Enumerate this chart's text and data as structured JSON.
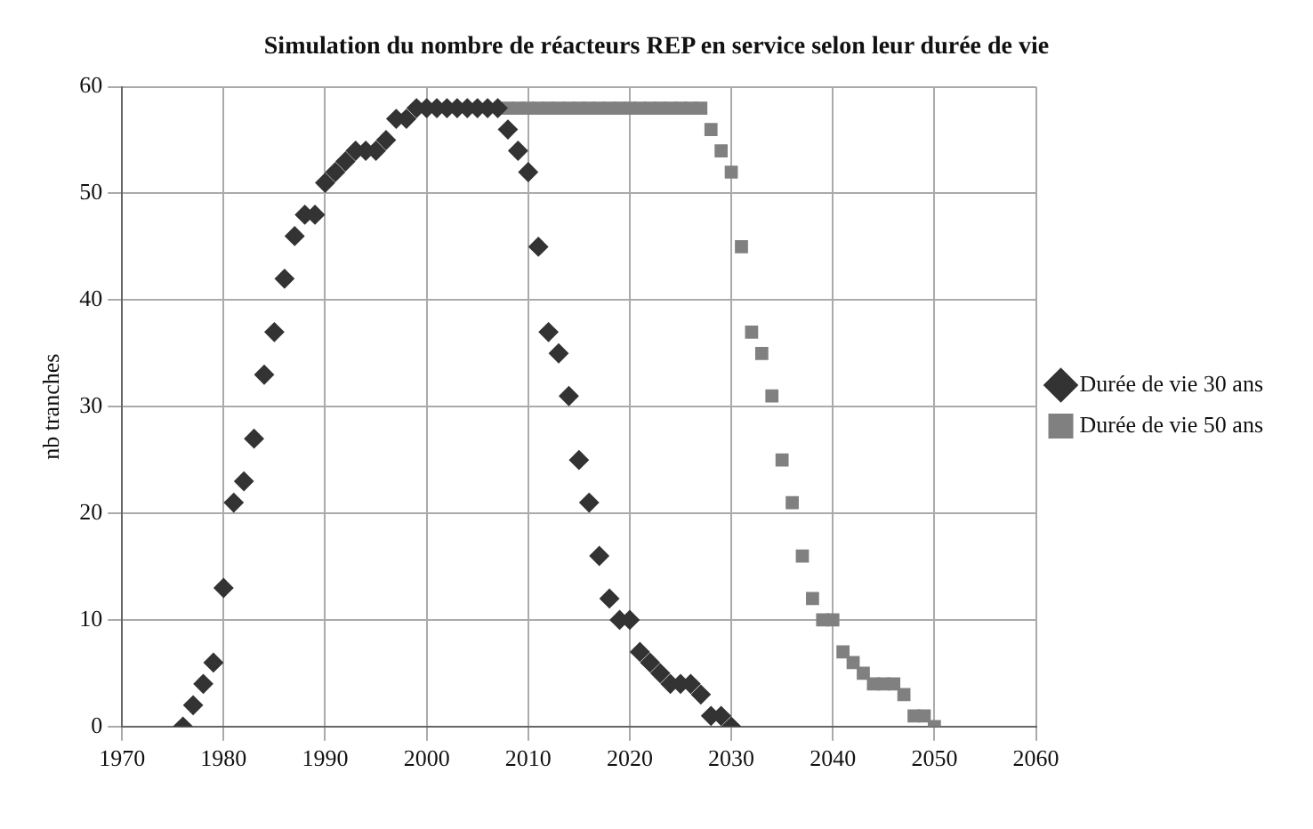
{
  "chart_data": {
    "type": "scatter",
    "title": "Simulation du nombre de réacteurs REP en service selon leur durée de vie",
    "ylabel": "nb tranches",
    "xlim": [
      1970,
      2060
    ],
    "xticks": [
      1970,
      1980,
      1990,
      2000,
      2010,
      2020,
      2030,
      2040,
      2050,
      2060
    ],
    "ylim": [
      0,
      60
    ],
    "yticks": [
      0,
      10,
      20,
      30,
      40,
      50,
      60
    ],
    "grid": true,
    "legend": "right",
    "series": [
      {
        "name": "Durée de vie 30 ans",
        "color": "#333333",
        "marker": "diamond",
        "x": [
          1976,
          1977,
          1978,
          1979,
          1980,
          1981,
          1982,
          1983,
          1984,
          1985,
          1986,
          1987,
          1988,
          1989,
          1990,
          1991,
          1992,
          1993,
          1994,
          1995,
          1996,
          1997,
          1998,
          1999,
          2000,
          2001,
          2002,
          2003,
          2004,
          2005,
          2006,
          2007,
          2008,
          2009,
          2010,
          2011,
          2012,
          2013,
          2014,
          2015,
          2016,
          2017,
          2018,
          2019,
          2020,
          2021,
          2022,
          2023,
          2024,
          2025,
          2026,
          2027,
          2028,
          2029,
          2030
        ],
        "values": [
          0,
          2,
          4,
          6,
          13,
          21,
          23,
          27,
          33,
          37,
          42,
          46,
          48,
          48,
          51,
          52,
          53,
          54,
          54,
          54,
          55,
          57,
          57,
          58,
          58,
          58,
          58,
          58,
          58,
          58,
          58,
          58,
          56,
          54,
          52,
          45,
          37,
          35,
          31,
          25,
          21,
          16,
          12,
          10,
          10,
          7,
          6,
          5,
          4,
          4,
          4,
          3,
          1,
          1,
          0
        ]
      },
      {
        "name": "Durée de vie 50 ans",
        "color": "#808080",
        "marker": "square",
        "x": [
          2008,
          2009,
          2010,
          2011,
          2012,
          2013,
          2014,
          2015,
          2016,
          2017,
          2018,
          2019,
          2020,
          2021,
          2022,
          2023,
          2024,
          2025,
          2026,
          2027,
          2028,
          2029,
          2030,
          2031,
          2032,
          2033,
          2034,
          2035,
          2036,
          2037,
          2038,
          2039,
          2040,
          2041,
          2042,
          2043,
          2044,
          2045,
          2046,
          2047,
          2048,
          2049,
          2050
        ],
        "values": [
          58,
          58,
          58,
          58,
          58,
          58,
          58,
          58,
          58,
          58,
          58,
          58,
          58,
          58,
          58,
          58,
          58,
          58,
          58,
          58,
          56,
          54,
          52,
          45,
          37,
          35,
          31,
          25,
          21,
          16,
          12,
          10,
          10,
          7,
          6,
          5,
          4,
          4,
          4,
          3,
          1,
          1,
          0
        ]
      }
    ]
  }
}
